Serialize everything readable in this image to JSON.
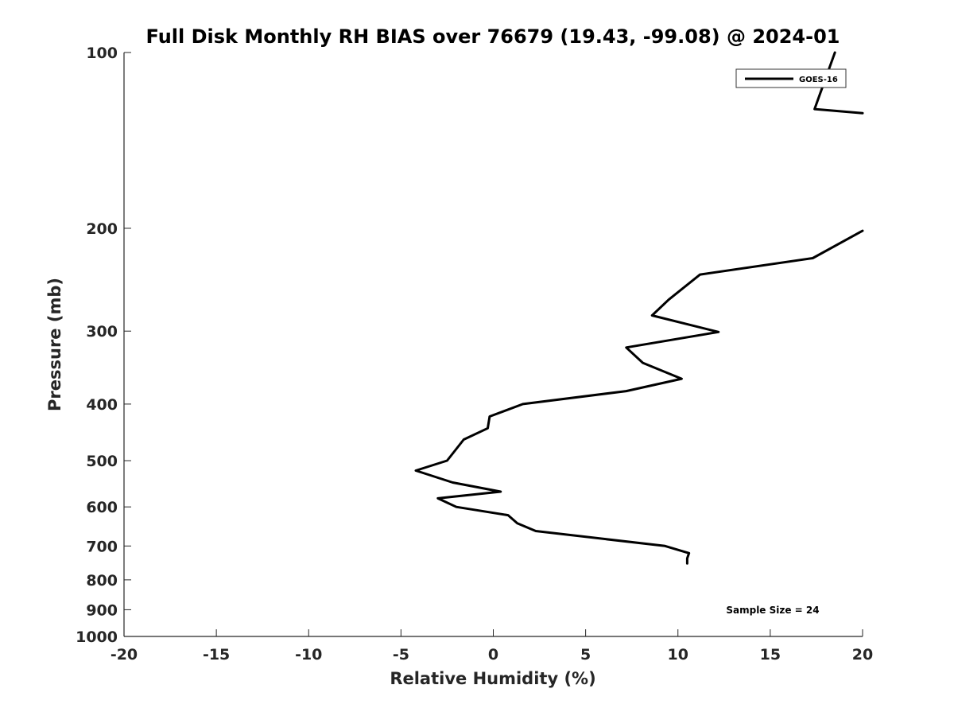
{
  "chart_data": {
    "type": "line",
    "title": "Full Disk Monthly RH BIAS over 76679 (19.43, -99.08) @ 2024-01",
    "xlabel": "Relative Humidity (%)",
    "ylabel": "Pressure (mb)",
    "xlim": [
      -20,
      20
    ],
    "ylim": [
      1000,
      100
    ],
    "y_scale": "log",
    "x_ticks": [
      -20,
      -15,
      -10,
      -5,
      0,
      5,
      10,
      15,
      20
    ],
    "y_ticks": [
      100,
      200,
      300,
      400,
      500,
      600,
      700,
      800,
      900,
      1000
    ],
    "x_tick_labels": [
      "-20",
      "-15",
      "-10",
      "-5",
      "0",
      "5",
      "10",
      "15",
      "20"
    ],
    "y_tick_labels": [
      "100",
      "200",
      "300",
      "400",
      "500",
      "600",
      "700",
      "800",
      "900",
      "1000"
    ],
    "grid": false,
    "legend_position": "top-right",
    "series": [
      {
        "name": "GOES-16",
        "color": "#000000",
        "points": [
          [
            18.5,
            100
          ],
          [
            17.4,
            125
          ],
          [
            20.0,
            127
          ],
          [
            20.0,
            202
          ],
          [
            17.3,
            225
          ],
          [
            11.2,
            240
          ],
          [
            9.5,
            265
          ],
          [
            8.6,
            282
          ],
          [
            12.2,
            301
          ],
          [
            7.2,
            320
          ],
          [
            8.1,
            340
          ],
          [
            10.2,
            362
          ],
          [
            7.2,
            380
          ],
          [
            1.6,
            400
          ],
          [
            -0.2,
            420
          ],
          [
            -0.3,
            440
          ],
          [
            -1.6,
            460
          ],
          [
            -2.5,
            500
          ],
          [
            -4.2,
            520
          ],
          [
            -2.2,
            545
          ],
          [
            0.4,
            565
          ],
          [
            -3.0,
            580
          ],
          [
            -2.0,
            600
          ],
          [
            0.8,
            620
          ],
          [
            1.3,
            640
          ],
          [
            2.3,
            660
          ],
          [
            9.3,
            700
          ],
          [
            10.6,
            720
          ],
          [
            10.5,
            735
          ],
          [
            10.5,
            750
          ]
        ]
      }
    ],
    "annotations": [
      "Sample Size = 24"
    ]
  }
}
